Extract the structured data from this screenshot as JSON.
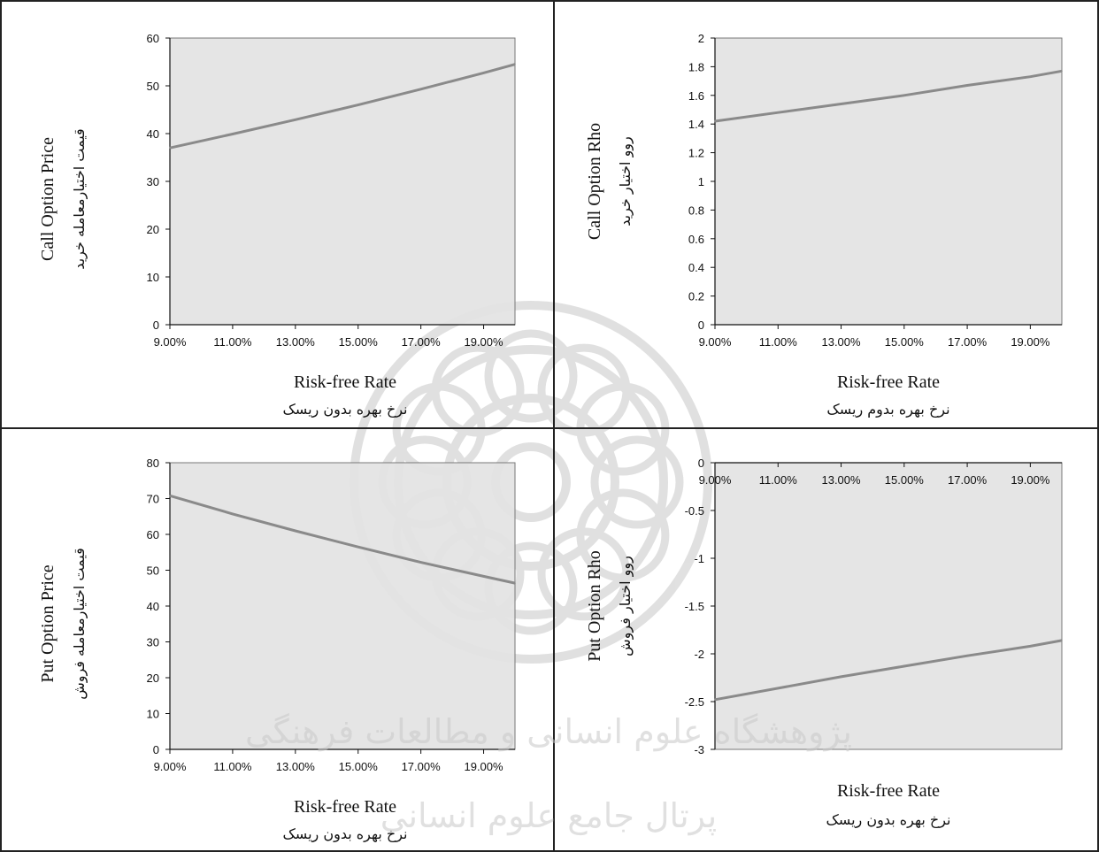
{
  "chart_data": [
    {
      "type": "line",
      "xlabel": "Risk-free Rate",
      "xlabel_fa": "نرخ بهره بدون ریسک",
      "ylabel": "Call Option Price",
      "ylabel_fa": "قیمت اختیارمعامله خرید",
      "x_ticks": [
        "9.00%",
        "11.00%",
        "13.00%",
        "15.00%",
        "17.00%",
        "19.00%"
      ],
      "xlim": [
        9.0,
        20.0
      ],
      "ylim": [
        0,
        60
      ],
      "y_ticks": [
        "0",
        "10",
        "20",
        "30",
        "40",
        "50",
        "60"
      ],
      "x_axis_position": "bottom",
      "series": [
        {
          "x": [
            9,
            11,
            13,
            15,
            17,
            19,
            20
          ],
          "values": [
            37.0,
            39.9,
            42.9,
            46.0,
            49.3,
            52.7,
            54.5
          ]
        }
      ],
      "line_color": "#8a8a8a",
      "plot_bg": "#e3e3e3"
    },
    {
      "type": "line",
      "xlabel": "Risk-free Rate",
      "xlabel_fa": "نرخ بهره بدوم ریسک",
      "ylabel": "Call Option Rho",
      "ylabel_fa": "روو اختیار خرید",
      "x_ticks": [
        "9.00%",
        "11.00%",
        "13.00%",
        "15.00%",
        "17.00%",
        "19.00%"
      ],
      "xlim": [
        9.0,
        20.0
      ],
      "ylim": [
        0,
        2
      ],
      "y_ticks": [
        "0",
        "0.2",
        "0.4",
        "0.6",
        "0.8",
        "1",
        "1.2",
        "1.4",
        "1.6",
        "1.8",
        "2"
      ],
      "x_axis_position": "bottom",
      "series": [
        {
          "x": [
            9,
            11,
            13,
            15,
            17,
            19,
            20
          ],
          "values": [
            1.42,
            1.48,
            1.54,
            1.6,
            1.67,
            1.73,
            1.77
          ]
        }
      ],
      "line_color": "#8a8a8a",
      "plot_bg": "#e3e3e3"
    },
    {
      "type": "line",
      "xlabel": "Risk-free Rate",
      "xlabel_fa": "نرخ بهره بدون ریسک",
      "ylabel": "Put Option Price",
      "ylabel_fa": "قیمت اختیارمعامله فروش",
      "x_ticks": [
        "9.00%",
        "11.00%",
        "13.00%",
        "15.00%",
        "17.00%",
        "19.00%"
      ],
      "xlim": [
        9.0,
        20.0
      ],
      "ylim": [
        0,
        80
      ],
      "y_ticks": [
        "0",
        "10",
        "20",
        "30",
        "40",
        "50",
        "60",
        "70",
        "80"
      ],
      "x_axis_position": "bottom",
      "series": [
        {
          "x": [
            9,
            11,
            13,
            15,
            17,
            19,
            20
          ],
          "values": [
            70.8,
            65.7,
            61.0,
            56.5,
            52.2,
            48.3,
            46.4
          ]
        }
      ],
      "line_color": "#8a8a8a",
      "plot_bg": "#e3e3e3"
    },
    {
      "type": "line",
      "xlabel": "Risk-free Rate",
      "xlabel_fa": "نرخ بهره بدون ریسک",
      "ylabel": "Put Option Rho",
      "ylabel_fa": "روو اختیار فروش",
      "x_ticks": [
        "9.00%",
        "11.00%",
        "13.00%",
        "15.00%",
        "17.00%",
        "19.00%"
      ],
      "xlim": [
        9.0,
        20.0
      ],
      "ylim": [
        -3,
        0
      ],
      "y_ticks": [
        "-3",
        "-2.5",
        "-2",
        "-1.5",
        "-1",
        "-0.5",
        "0"
      ],
      "x_axis_position": "top",
      "series": [
        {
          "x": [
            9,
            11,
            13,
            15,
            17,
            19,
            20
          ],
          "values": [
            -2.48,
            -2.36,
            -2.24,
            -2.13,
            -2.02,
            -1.92,
            -1.86
          ]
        }
      ],
      "line_color": "#8a8a8a",
      "plot_bg": "#e3e3e3"
    }
  ],
  "watermark": {
    "line1": "پژوهشگاه علوم انسانی و مطالعات فرهنگی",
    "line2": "پرتال جامع علوم انسانی",
    "color": "#c8c8c8"
  }
}
